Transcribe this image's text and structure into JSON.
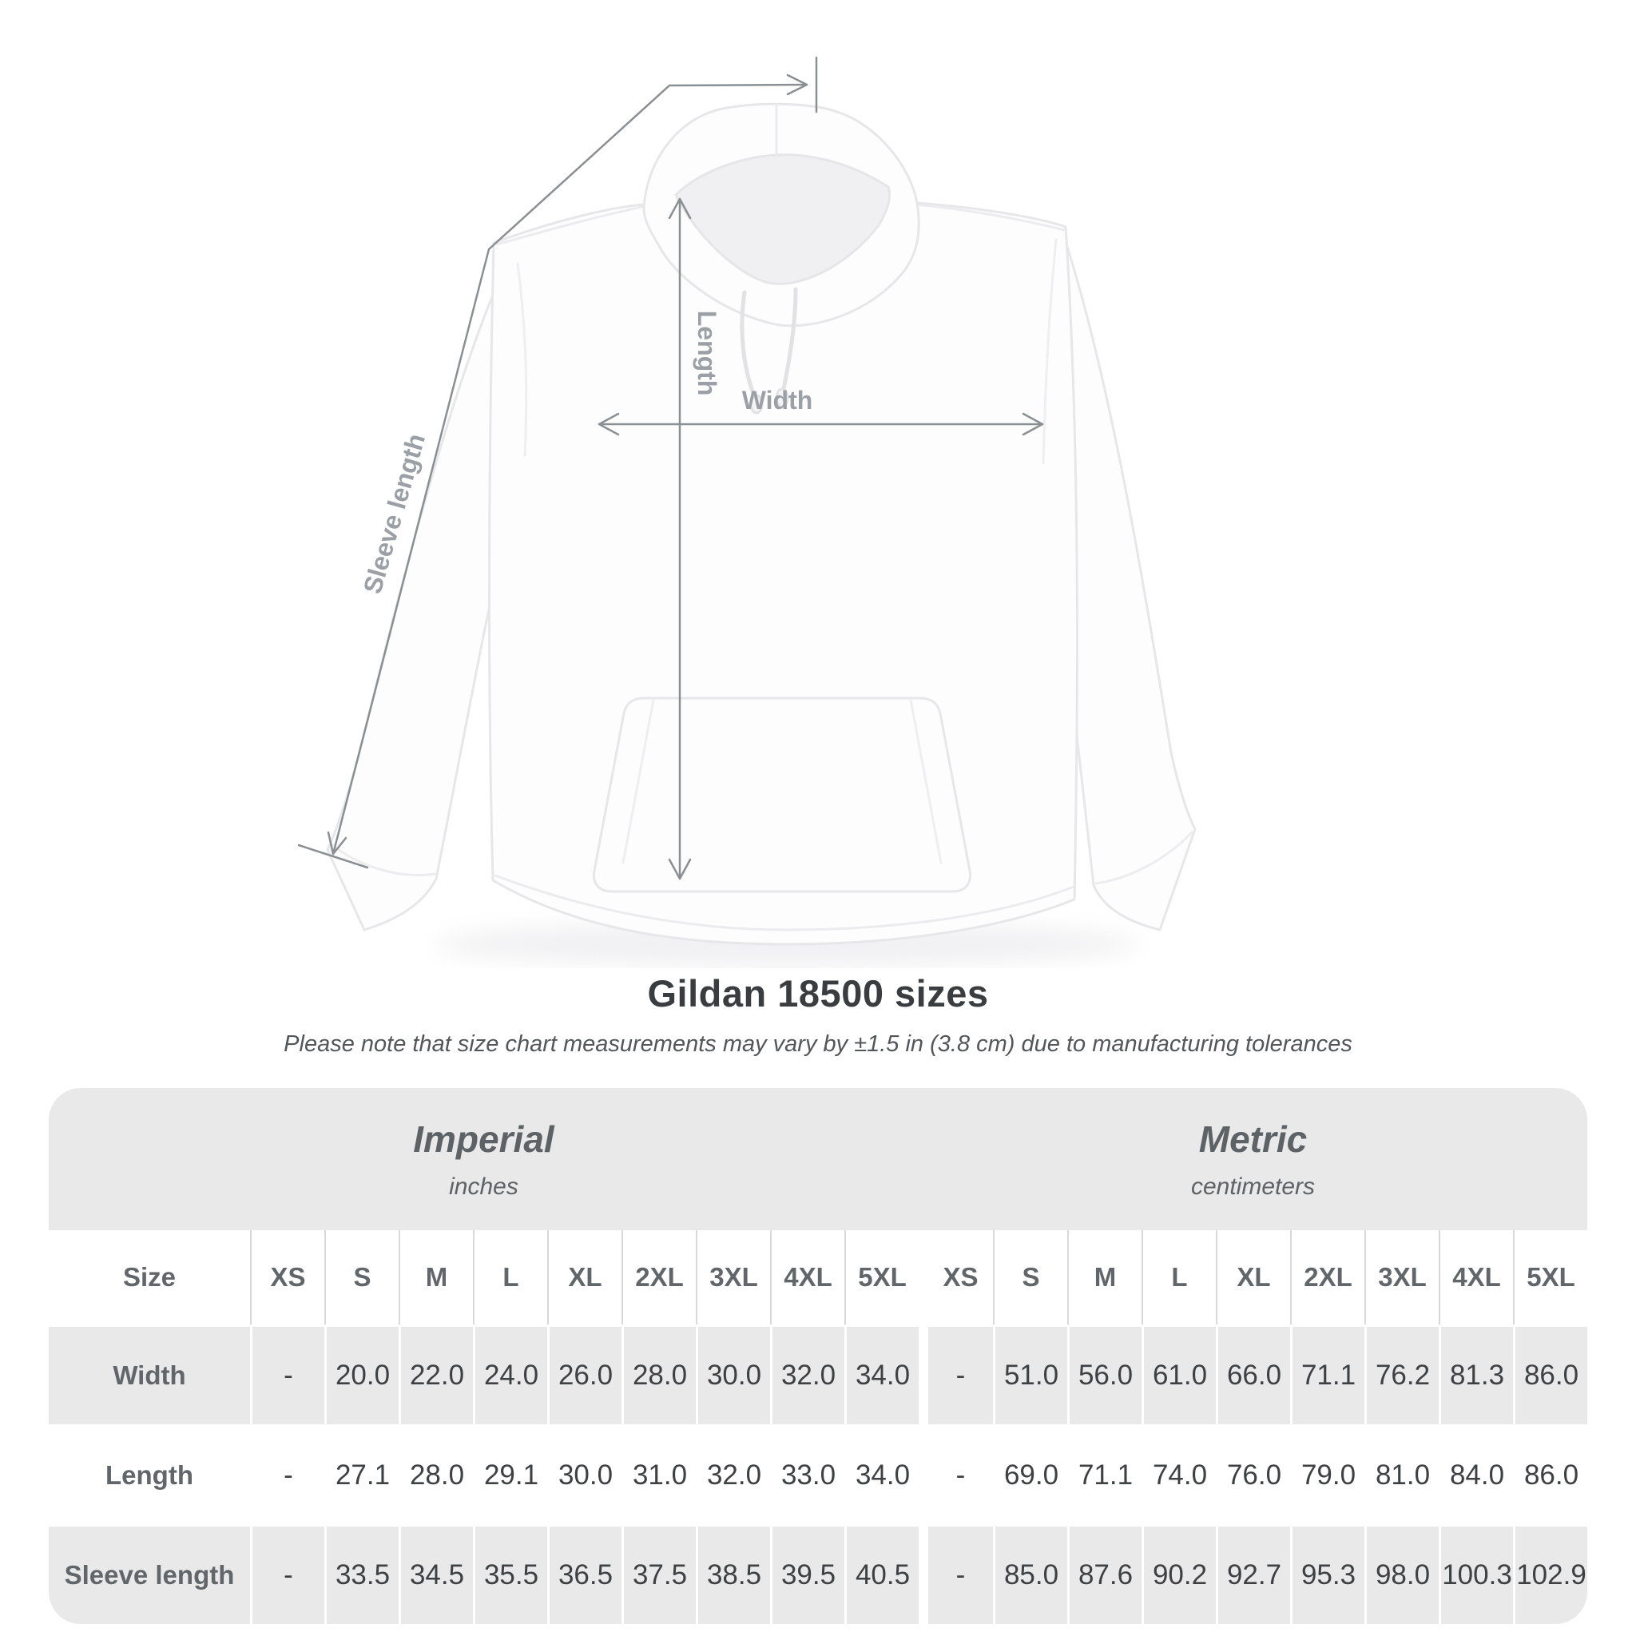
{
  "diagram": {
    "labels": {
      "length": "Length",
      "width": "Width",
      "sleeve": "Sleeve length"
    }
  },
  "caption": {
    "title": "Gildan 18500 sizes",
    "subtitle": "Please note that size chart measurements may vary by ±1.5 in (3.8 cm) due to manufacturing tolerances"
  },
  "table": {
    "sections": [
      {
        "label": "Imperial",
        "sublabel": "inches"
      },
      {
        "label": "Metric",
        "sublabel": "centimeters"
      }
    ],
    "corner_label": "Size",
    "sizes": [
      "XS",
      "S",
      "M",
      "L",
      "XL",
      "2XL",
      "3XL",
      "4XL",
      "5XL"
    ],
    "rows": [
      {
        "label": "Width",
        "imperial": [
          "-",
          "20.0",
          "22.0",
          "24.0",
          "26.0",
          "28.0",
          "30.0",
          "32.0",
          "34.0"
        ],
        "metric": [
          "-",
          "51.0",
          "56.0",
          "61.0",
          "66.0",
          "71.1",
          "76.2",
          "81.3",
          "86.0"
        ]
      },
      {
        "label": "Length",
        "imperial": [
          "-",
          "27.1",
          "28.0",
          "29.1",
          "30.0",
          "31.0",
          "32.0",
          "33.0",
          "34.0"
        ],
        "metric": [
          "-",
          "69.0",
          "71.1",
          "74.0",
          "76.0",
          "79.0",
          "81.0",
          "84.0",
          "86.0"
        ]
      },
      {
        "label": "Sleeve length",
        "imperial": [
          "-",
          "33.5",
          "34.5",
          "35.5",
          "36.5",
          "37.5",
          "38.5",
          "39.5",
          "40.5"
        ],
        "metric": [
          "-",
          "85.0",
          "87.6",
          "90.2",
          "92.7",
          "95.3",
          "98.0",
          "100.3",
          "102.9"
        ]
      }
    ]
  },
  "colors": {
    "shaded_row": "#e9e9e9",
    "header_text": "#61666a",
    "data_text": "#3e4144",
    "annotation_line": "#8a8f94",
    "annotation_label": "#9aa0a5"
  },
  "chart_data": {
    "type": "table",
    "title": "Gildan 18500 sizes",
    "note": "Please note that size chart measurements may vary by ±1.5 in (3.8 cm) due to manufacturing tolerances",
    "column_groups": [
      {
        "name": "Imperial",
        "unit": "inches"
      },
      {
        "name": "Metric",
        "unit": "centimeters"
      }
    ],
    "sizes": [
      "XS",
      "S",
      "M",
      "L",
      "XL",
      "2XL",
      "3XL",
      "4XL",
      "5XL"
    ],
    "rows": [
      {
        "label": "Width",
        "imperial": [
          null,
          20.0,
          22.0,
          24.0,
          26.0,
          28.0,
          30.0,
          32.0,
          34.0
        ],
        "metric": [
          null,
          51.0,
          56.0,
          61.0,
          66.0,
          71.1,
          76.2,
          81.3,
          86.0
        ]
      },
      {
        "label": "Length",
        "imperial": [
          null,
          27.1,
          28.0,
          29.1,
          30.0,
          31.0,
          32.0,
          33.0,
          34.0
        ],
        "metric": [
          null,
          69.0,
          71.1,
          74.0,
          76.0,
          79.0,
          81.0,
          84.0,
          86.0
        ]
      },
      {
        "label": "Sleeve length",
        "imperial": [
          null,
          33.5,
          34.5,
          35.5,
          36.5,
          37.5,
          38.5,
          39.5,
          40.5
        ],
        "metric": [
          null,
          85.0,
          87.6,
          90.2,
          92.7,
          95.3,
          98.0,
          100.3,
          102.9
        ]
      }
    ]
  }
}
